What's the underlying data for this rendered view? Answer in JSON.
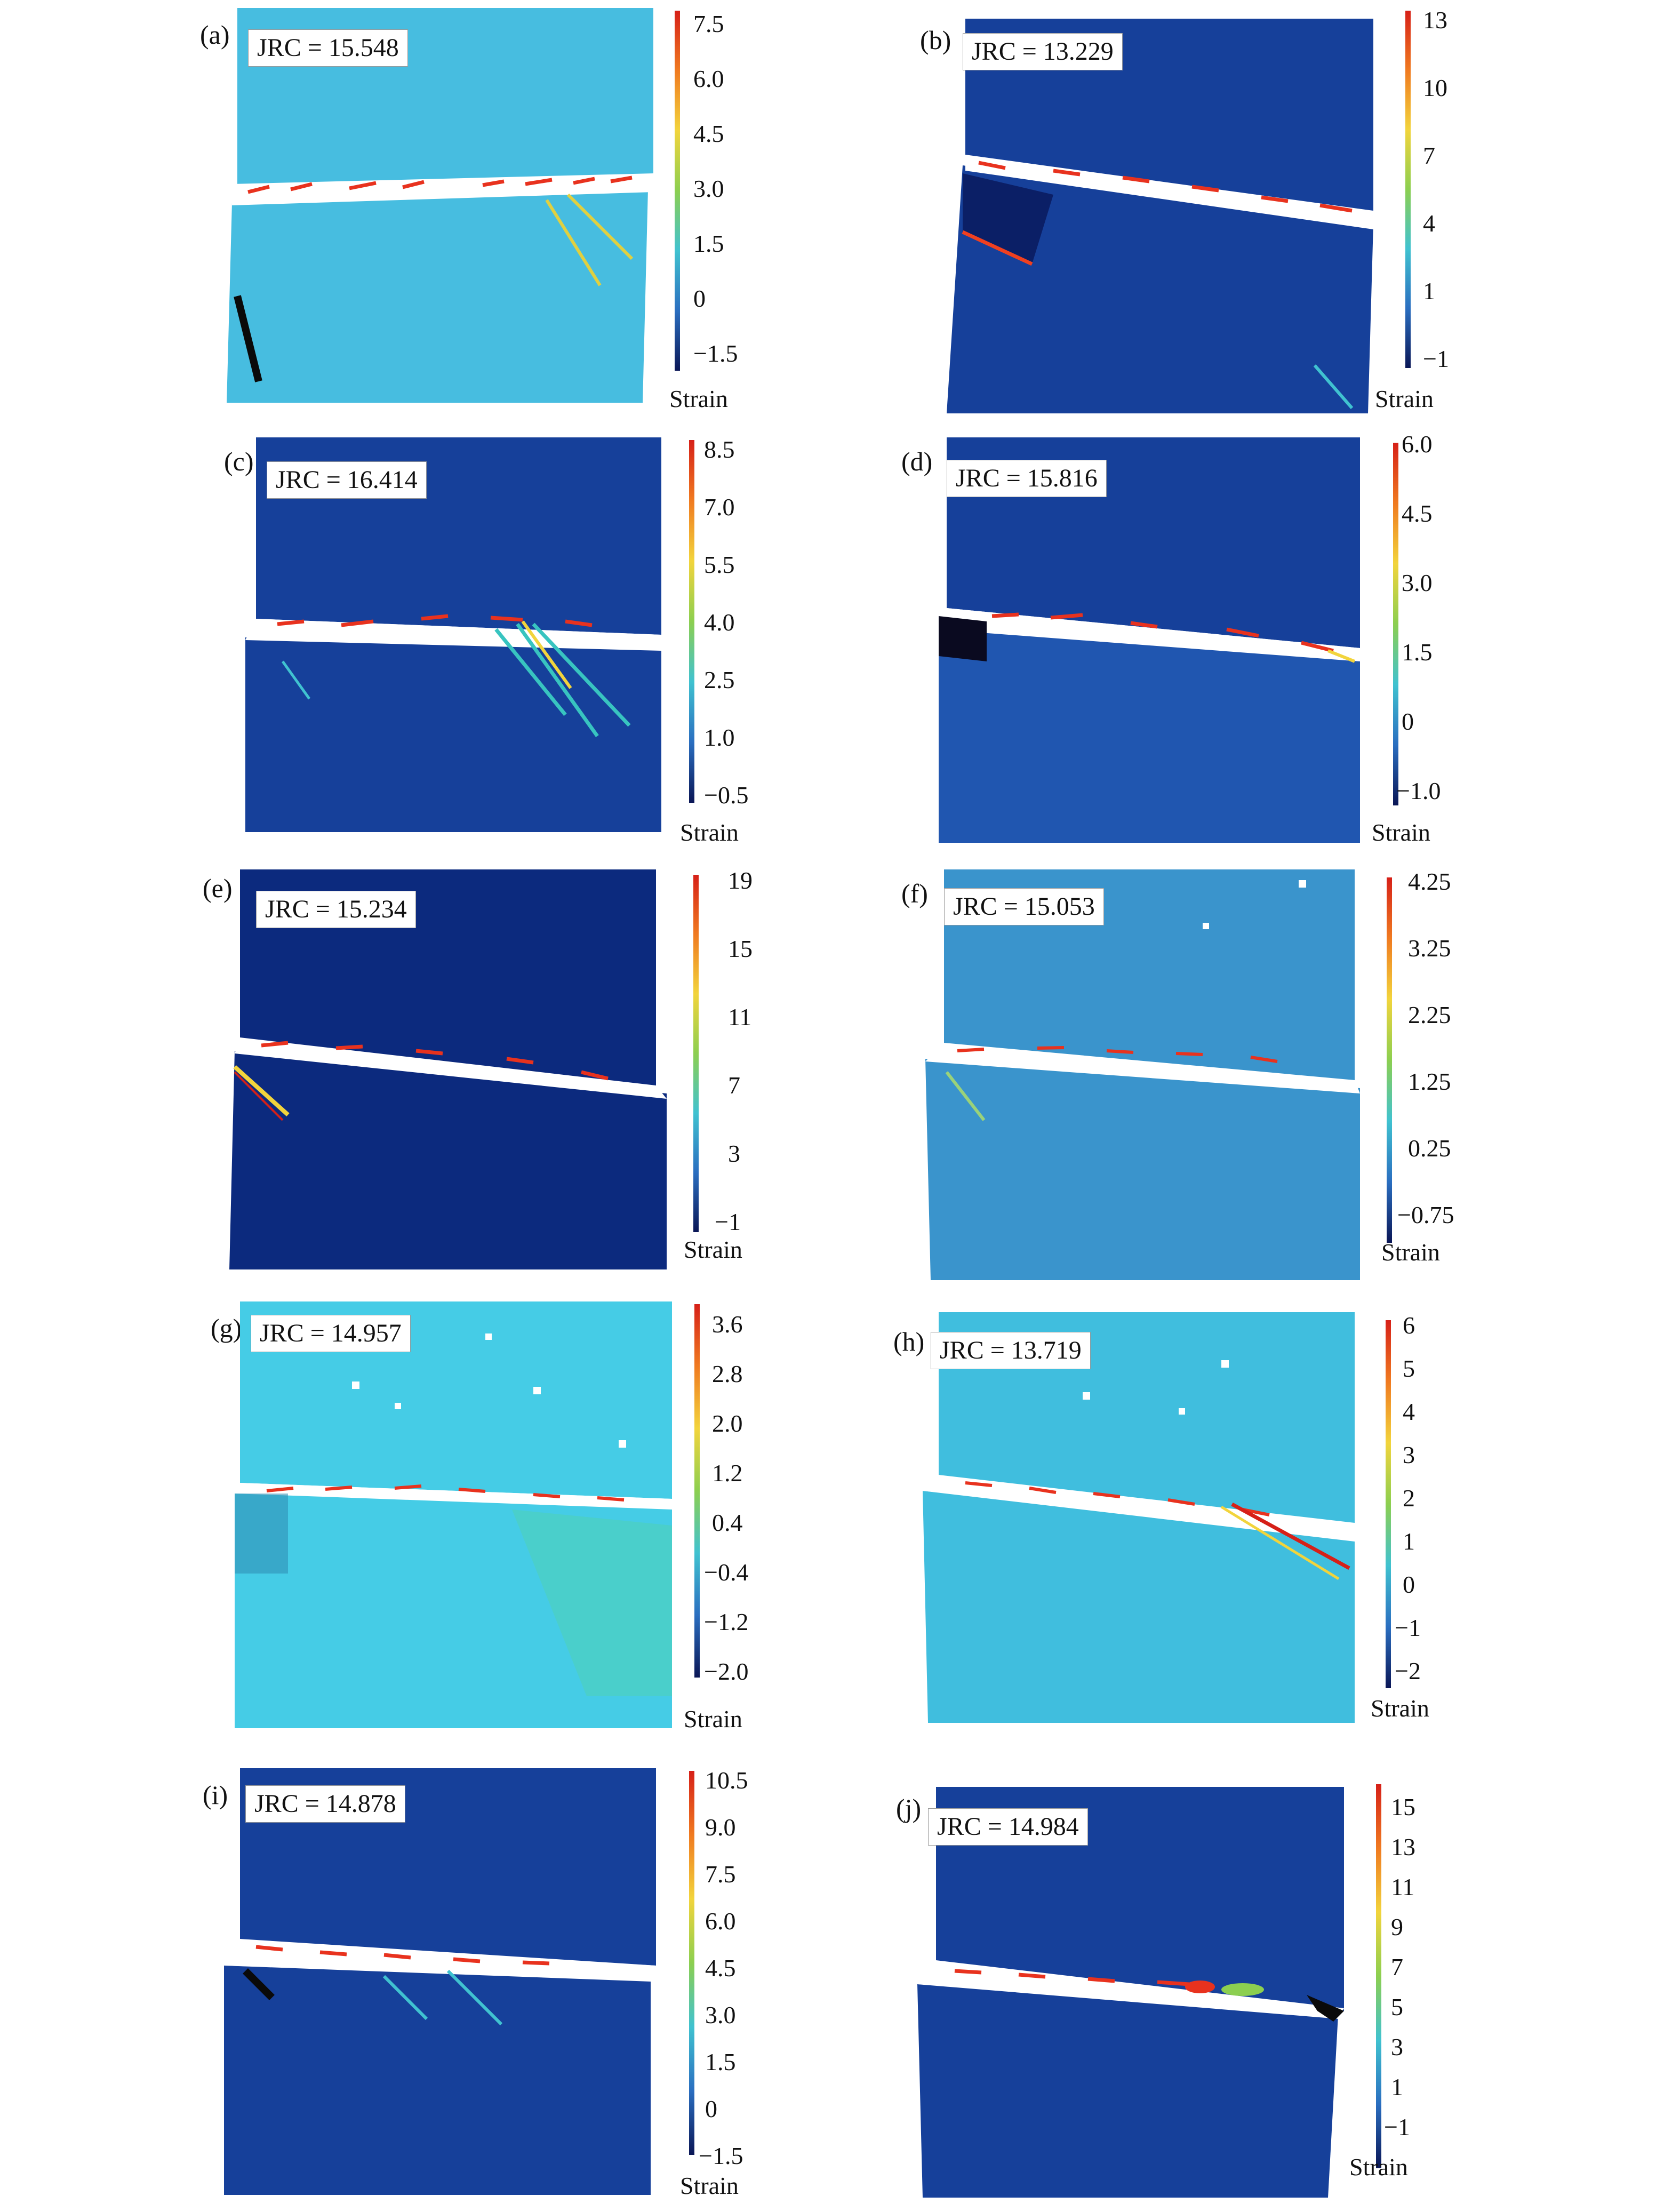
{
  "figure": {
    "colorbar_label": "Strain",
    "panels": [
      {
        "id": "a",
        "label": "(a)",
        "jrc": "JRC = 15.548",
        "ticks": [
          "7.5",
          "6.0",
          "4.5",
          "3.0",
          "1.5",
          "0",
          "−1.5"
        ],
        "background": "#47bde0"
      },
      {
        "id": "b",
        "label": "(b)",
        "jrc": "JRC = 13.229",
        "ticks": [
          "13",
          "10",
          "7",
          "4",
          "1",
          "−1"
        ],
        "background": "#16409a"
      },
      {
        "id": "c",
        "label": "(c)",
        "jrc": "JRC = 16.414",
        "ticks": [
          "8.5",
          "7.0",
          "5.5",
          "4.0",
          "2.5",
          "1.0",
          "−0.5"
        ],
        "background": "#16409a"
      },
      {
        "id": "d",
        "label": "(d)",
        "jrc": "JRC = 15.816",
        "ticks": [
          "6.0",
          "4.5",
          "3.0",
          "1.5",
          "0",
          "−1.0"
        ],
        "background": "#2056b0"
      },
      {
        "id": "e",
        "label": "(e)",
        "jrc": "JRC = 15.234",
        "ticks": [
          "19",
          "15",
          "11",
          "7",
          "3",
          "−1"
        ],
        "background": "#0c2a7e"
      },
      {
        "id": "f",
        "label": "(f)",
        "jrc": "JRC = 15.053",
        "ticks": [
          "4.25",
          "3.25",
          "2.25",
          "1.25",
          "0.25",
          "−0.75"
        ],
        "background": "#3a94cc"
      },
      {
        "id": "g",
        "label": "(g)",
        "jrc": "JRC = 14.957",
        "ticks": [
          "3.6",
          "2.8",
          "2.0",
          "1.2",
          "0.4",
          "−0.4",
          "−1.2",
          "−2.0"
        ],
        "background": "#45cce6"
      },
      {
        "id": "h",
        "label": "(h)",
        "jrc": "JRC = 13.719",
        "ticks": [
          "6",
          "5",
          "4",
          "3",
          "2",
          "1",
          "0",
          "−1",
          "−2"
        ],
        "background": "#40bede"
      },
      {
        "id": "i",
        "label": "(i)",
        "jrc": "JRC = 14.878",
        "ticks": [
          "10.5",
          "9.0",
          "7.5",
          "6.0",
          "4.5",
          "3.0",
          "1.5",
          "0",
          "−1.5"
        ],
        "background": "#16409a"
      },
      {
        "id": "j",
        "label": "(j)",
        "jrc": "JRC = 14.984",
        "ticks": [
          "15",
          "13",
          "11",
          "9",
          "7",
          "5",
          "3",
          "1",
          "−1"
        ],
        "background": "#16409a"
      }
    ]
  }
}
